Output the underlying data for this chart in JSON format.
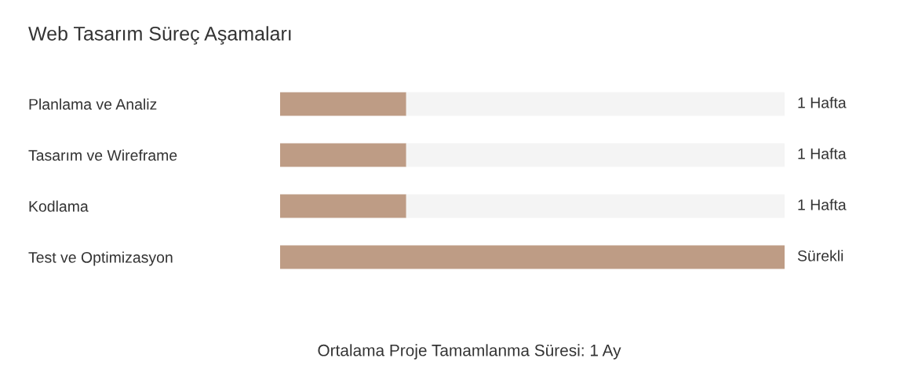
{
  "chart_data": {
    "type": "bar",
    "orientation": "horizontal",
    "stacked": true,
    "xlim": [
      0,
      4
    ],
    "tick_labels": "y",
    "title": "Web Tasarım Süreç Aşamaları",
    "categories": [
      "Planlama ve Analiz",
      "Tasarım ve Wireframe",
      "Kodlama",
      "Test ve Optimizasyon"
    ],
    "series": [
      {
        "color": "#be9c85",
        "values": [
          1,
          1,
          1,
          4
        ],
        "value_labels": [
          "1 Hafta",
          "1 Hafta",
          "1 Hafta",
          "Sürekli"
        ]
      },
      {
        "color": "#f4f4f4",
        "values": [
          3,
          3,
          3,
          0
        ]
      }
    ],
    "annotations": [
      "Ortalama Proje Tamamlanma Süresi: 1 Ay"
    ],
    "grid": false,
    "legend": false
  }
}
